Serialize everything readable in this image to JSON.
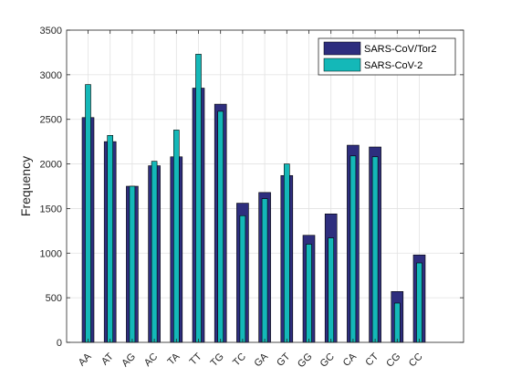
{
  "chart_data": {
    "type": "bar",
    "title": "",
    "xlabel": "",
    "ylabel": "Frequency",
    "ylim": [
      0,
      3500
    ],
    "yticks": [
      0,
      500,
      1000,
      1500,
      2000,
      2500,
      3000,
      3500
    ],
    "grid": true,
    "legend_position": "top-right",
    "categories": [
      "AA",
      "AT",
      "AG",
      "AC",
      "TA",
      "TT",
      "TG",
      "TC",
      "GA",
      "GT",
      "GG",
      "GC",
      "CA",
      "CT",
      "CG",
      "CC"
    ],
    "series": [
      {
        "name": "SARS-CoV/Tor2",
        "color": "#2e2e7e",
        "values": [
          2520,
          2250,
          1750,
          1980,
          2080,
          2850,
          2670,
          1560,
          1680,
          1870,
          1200,
          1440,
          2210,
          2190,
          570,
          980
        ]
      },
      {
        "name": "SARS-CoV-2",
        "color": "#14b8b8",
        "values": [
          2890,
          2320,
          1750,
          2030,
          2380,
          3230,
          2590,
          1420,
          1610,
          2000,
          1100,
          1170,
          2090,
          2080,
          440,
          890
        ]
      }
    ]
  }
}
